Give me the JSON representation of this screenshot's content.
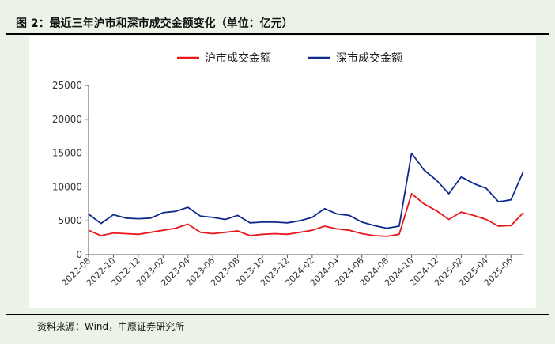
{
  "figure": {
    "title": "图 2：最近三年沪市和深市成交金额变化（单位：亿元）",
    "source": "资料来源：Wind，中原证券研究所"
  },
  "chart_data": {
    "type": "line",
    "legend_position": "top",
    "grid": false,
    "ylim": [
      0,
      25000
    ],
    "y_ticks": [
      0,
      5000,
      10000,
      15000,
      20000,
      25000
    ],
    "y_tick_labels": [
      "0",
      "5000",
      "10000",
      "15000",
      "20000",
      "25000"
    ],
    "x_tick_labels": [
      "2022-08",
      "2022-10",
      "2022-12",
      "2023-02",
      "2023-04",
      "2023-06",
      "2023-08",
      "2023-10",
      "2023-12",
      "2024-02",
      "2024-04",
      "2024-06",
      "2024-08",
      "2024-10",
      "2024-12",
      "2025-02",
      "2025-04",
      "2025-06"
    ],
    "x": [
      "2022-08",
      "2022-09",
      "2022-10",
      "2022-11",
      "2022-12",
      "2023-01",
      "2023-02",
      "2023-03",
      "2023-04",
      "2023-05",
      "2023-06",
      "2023-07",
      "2023-08",
      "2023-09",
      "2023-10",
      "2023-11",
      "2023-12",
      "2024-01",
      "2024-02",
      "2024-03",
      "2024-04",
      "2024-05",
      "2024-06",
      "2024-07",
      "2024-08",
      "2024-09",
      "2024-10",
      "2024-11",
      "2024-12",
      "2025-01",
      "2025-02",
      "2025-03",
      "2025-04",
      "2025-05",
      "2025-06",
      "2025-07"
    ],
    "series": [
      {
        "name": "沪市成交金额",
        "color": "#e8191c",
        "values": [
          3600,
          2800,
          3200,
          3100,
          3000,
          3300,
          3600,
          3900,
          4500,
          3300,
          3100,
          3300,
          3500,
          2800,
          3000,
          3100,
          3000,
          3300,
          3600,
          4200,
          3800,
          3600,
          3100,
          2800,
          2700,
          3000,
          9000,
          7500,
          6500,
          5200,
          6300,
          5800,
          5200,
          4200,
          4300,
          6200
        ]
      },
      {
        "name": "深市成交金额",
        "color": "#102a8c",
        "values": [
          6000,
          4600,
          5900,
          5400,
          5300,
          5400,
          6200,
          6400,
          7000,
          5700,
          5500,
          5200,
          5800,
          4700,
          4800,
          4800,
          4700,
          5000,
          5500,
          6800,
          6000,
          5800,
          4800,
          4300,
          3900,
          4200,
          15000,
          12500,
          11000,
          9000,
          11500,
          10500,
          9800,
          7800,
          8100,
          12300
        ]
      }
    ]
  }
}
